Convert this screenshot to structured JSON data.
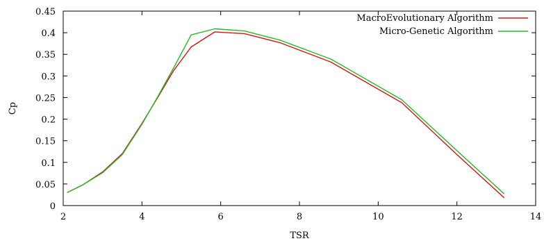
{
  "chart_data": {
    "type": "line",
    "xlabel": "TSR",
    "ylabel": "Cp",
    "xlim": [
      2,
      14
    ],
    "ylim": [
      0,
      0.45
    ],
    "xticks": [
      2,
      4,
      6,
      8,
      10,
      12,
      14
    ],
    "yticks": [
      0,
      0.05,
      0.1,
      0.15,
      0.2,
      0.25,
      0.3,
      0.35,
      0.4,
      0.45
    ],
    "xtick_labels": [
      "2",
      "4",
      "6",
      "8",
      "10",
      "12",
      "14"
    ],
    "ytick_labels": [
      "0",
      "0.05",
      "0.1",
      "0.15",
      "0.2",
      "0.25",
      "0.3",
      "0.35",
      "0.4",
      "0.45"
    ],
    "grid": false,
    "legend_position": "top-right",
    "series": [
      {
        "name": "MacroEvolutionary Algorithm",
        "color": "#dd1111",
        "x": [
          2.1,
          2.5,
          3.0,
          3.5,
          4.0,
          4.4,
          4.8,
          5.25,
          5.85,
          6.6,
          7.5,
          8.8,
          10.6,
          12.0,
          13.2
        ],
        "y": [
          0.03,
          0.048,
          0.078,
          0.12,
          0.19,
          0.25,
          0.312,
          0.367,
          0.402,
          0.398,
          0.377,
          0.332,
          0.238,
          0.118,
          0.018
        ]
      },
      {
        "name": "Micro-Genetic Algorithm",
        "color": "#22bb22",
        "x": [
          2.1,
          2.5,
          3.0,
          3.5,
          4.0,
          4.4,
          4.8,
          5.25,
          5.85,
          6.6,
          7.5,
          8.8,
          10.6,
          12.0,
          13.2
        ],
        "y": [
          0.03,
          0.048,
          0.076,
          0.118,
          0.188,
          0.252,
          0.318,
          0.395,
          0.409,
          0.404,
          0.383,
          0.339,
          0.245,
          0.127,
          0.027
        ]
      }
    ]
  }
}
